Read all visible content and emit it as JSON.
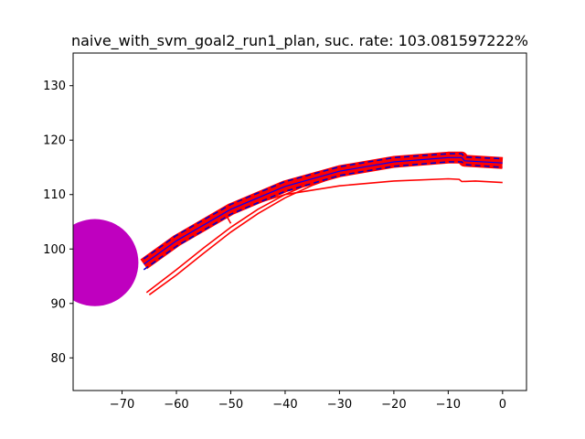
{
  "chart_data": {
    "type": "line",
    "title": "naive_with_svm_goal2_run1_plan, suc. rate: 103.081597222%",
    "xlabel": "",
    "ylabel": "",
    "xlim": [
      -79,
      4.4
    ],
    "ylim": [
      74,
      136
    ],
    "xticks": [
      -70,
      -60,
      -50,
      -40,
      -30,
      -20,
      -10,
      0
    ],
    "xtick_labels": [
      "−70",
      "−60",
      "−50",
      "−40",
      "−30",
      "−20",
      "−10",
      "0"
    ],
    "yticks": [
      80,
      90,
      100,
      110,
      120,
      130
    ],
    "ytick_labels": [
      "80",
      "90",
      "100",
      "110",
      "120",
      "130"
    ],
    "grid": false,
    "colors": {
      "band": "#ff0000",
      "dashed": "#0000cc",
      "center": "#0000ff",
      "traj": "#ff0000",
      "obstacle": "#bf00bf"
    },
    "obstacle": {
      "shape": "circle",
      "center": [
        -75,
        97.5
      ],
      "radius": 8
    },
    "series": [
      {
        "kind": "band",
        "points": [
          [
            -66,
            97.2
          ],
          [
            -60,
            101.5
          ],
          [
            -50,
            107.3
          ],
          [
            -40,
            111.5
          ],
          [
            -30,
            114.3
          ],
          [
            -20,
            116
          ],
          [
            -10,
            116.8
          ],
          [
            -7.5,
            116.8
          ],
          [
            -7,
            116.2
          ],
          [
            0,
            115.8
          ]
        ]
      },
      {
        "kind": "dashed",
        "points": [
          [
            -66,
            98.2
          ],
          [
            -60,
            102.5
          ],
          [
            -50,
            108.2
          ],
          [
            -40,
            112.4
          ],
          [
            -30,
            115.1
          ],
          [
            -20,
            116.8
          ],
          [
            -10,
            117.5
          ],
          [
            -7.5,
            117.5
          ],
          [
            -7,
            116.9
          ],
          [
            0,
            116.6
          ]
        ]
      },
      {
        "kind": "dashed",
        "points": [
          [
            -66,
            96.2
          ],
          [
            -60,
            100.5
          ],
          [
            -50,
            106.4
          ],
          [
            -40,
            110.6
          ],
          [
            -30,
            113.5
          ],
          [
            -20,
            115.2
          ],
          [
            -10,
            116
          ],
          [
            -7.5,
            116
          ],
          [
            -7,
            115.5
          ],
          [
            0,
            115
          ]
        ]
      },
      {
        "kind": "center",
        "points": [
          [
            -66,
            97.2
          ],
          [
            -60,
            101.5
          ],
          [
            -50,
            107.3
          ],
          [
            -40,
            111.5
          ],
          [
            -30,
            114.3
          ],
          [
            -20,
            116
          ],
          [
            -10,
            116.8
          ],
          [
            -7.5,
            116.8
          ],
          [
            -7,
            116.2
          ],
          [
            0,
            115.8
          ]
        ]
      },
      {
        "kind": "traj",
        "points": [
          [
            -65,
            91.6
          ],
          [
            -60,
            95.2
          ],
          [
            -55,
            99.2
          ],
          [
            -50,
            103.1
          ],
          [
            -45,
            106.5
          ],
          [
            -40,
            109.4
          ],
          [
            -35,
            111.7
          ],
          [
            -30,
            113.5
          ],
          [
            -28,
            114.2
          ]
        ]
      },
      {
        "kind": "traj",
        "points": [
          [
            -65.5,
            92
          ],
          [
            -60,
            96.2
          ],
          [
            -55,
            100.2
          ],
          [
            -50,
            104
          ],
          [
            -45,
            107.3
          ],
          [
            -40,
            110
          ],
          [
            -35,
            112.2
          ],
          [
            -31,
            113.6
          ]
        ]
      },
      {
        "kind": "traj",
        "points": [
          [
            -50,
            104.7
          ],
          [
            -51,
            106.5
          ],
          [
            -45,
            108.5
          ],
          [
            -40,
            110
          ],
          [
            -30,
            111.6
          ],
          [
            -20,
            112.5
          ],
          [
            -10,
            112.9
          ],
          [
            -8,
            112.8
          ],
          [
            -7.5,
            112.4
          ],
          [
            -5,
            112.5
          ],
          [
            0,
            112.2
          ]
        ]
      }
    ]
  }
}
